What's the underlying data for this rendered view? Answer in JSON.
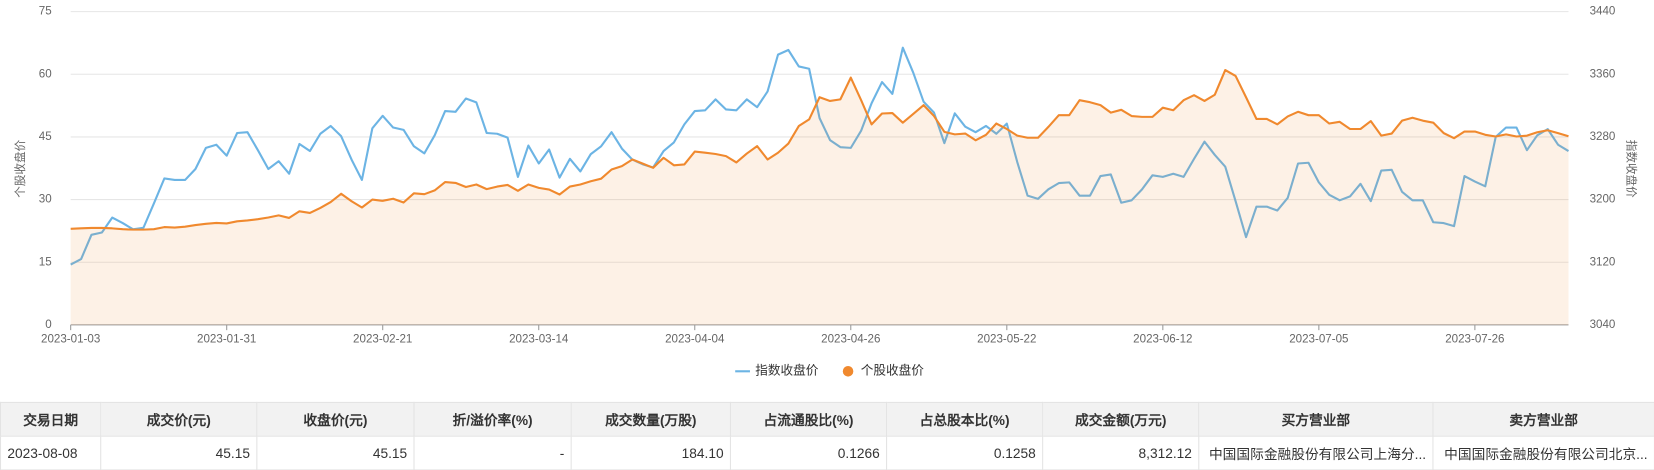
{
  "chart_data": {
    "type": "line",
    "y_label": "个股收盘价",
    "y2_label": "指数收盘价",
    "ylim": [
      0,
      75
    ],
    "yticks": [
      0,
      15,
      30,
      45,
      60,
      75
    ],
    "y2lim": [
      3040,
      3440
    ],
    "y2ticks": [
      3040,
      3120,
      3200,
      3280,
      3360,
      3440
    ],
    "grid": true,
    "legend": "bottom",
    "categories": [
      "2023-01-03",
      null,
      null,
      null,
      null,
      null,
      null,
      null,
      null,
      null,
      null,
      null,
      null,
      null,
      null,
      "2023-01-31",
      null,
      null,
      null,
      null,
      null,
      null,
      null,
      null,
      null,
      null,
      null,
      null,
      null,
      null,
      "2023-02-21",
      null,
      null,
      null,
      null,
      null,
      null,
      null,
      null,
      null,
      null,
      null,
      null,
      null,
      null,
      "2023-03-14",
      null,
      null,
      null,
      null,
      null,
      null,
      null,
      null,
      null,
      null,
      null,
      null,
      null,
      null,
      "2023-04-04",
      null,
      null,
      null,
      null,
      null,
      null,
      null,
      null,
      null,
      null,
      null,
      null,
      null,
      null,
      "2023-04-26",
      null,
      null,
      null,
      null,
      null,
      null,
      null,
      null,
      null,
      null,
      null,
      null,
      null,
      null,
      "2023-05-22",
      null,
      null,
      null,
      null,
      null,
      null,
      null,
      null,
      null,
      null,
      null,
      null,
      null,
      null,
      "2023-06-12",
      null,
      null,
      null,
      null,
      null,
      null,
      null,
      null,
      null,
      null,
      null,
      null,
      null,
      null,
      "2023-07-05",
      null,
      null,
      null,
      null,
      null,
      null,
      null,
      null,
      null,
      null,
      null,
      null,
      null,
      null,
      "2023-07-26",
      null,
      null,
      null,
      null,
      null,
      null,
      null,
      null,
      null
    ],
    "series": [
      {
        "name": "指数收盘价",
        "color": "#6cb4e4",
        "axis": "y2",
        "values": [
          3117,
          3124,
          3155,
          3158,
          3177,
          3170,
          3162,
          3164,
          3195,
          3227,
          3225,
          3225,
          3239,
          3266,
          3270,
          3256,
          3285,
          3286,
          3263,
          3239,
          3249,
          3233,
          3271,
          3262,
          3284,
          3294,
          3281,
          3251,
          3225,
          3291,
          3307,
          3292,
          3289,
          3268,
          3259,
          3282,
          3313,
          3312,
          3329,
          3324,
          3285,
          3284,
          3279,
          3229,
          3269,
          3246,
          3264,
          3228,
          3252,
          3236,
          3258,
          3268,
          3286,
          3265,
          3251,
          3245,
          3241,
          3262,
          3273,
          3296,
          3313,
          3314,
          3328,
          3315,
          3314,
          3328,
          3318,
          3338,
          3385,
          3391,
          3370,
          3367,
          3304,
          3276,
          3267,
          3266,
          3288,
          3323,
          3350,
          3335,
          3394,
          3362,
          3325,
          3311,
          3272,
          3310,
          3293,
          3286,
          3294,
          3284,
          3297,
          3248,
          3205,
          3201,
          3213,
          3221,
          3222,
          3205,
          3205,
          3230,
          3232,
          3196,
          3199,
          3213,
          3231,
          3229,
          3233,
          3229,
          3252,
          3274,
          3257,
          3242,
          3198,
          3152,
          3191,
          3191,
          3186,
          3202,
          3246,
          3247,
          3222,
          3206,
          3199,
          3204,
          3220,
          3198,
          3237,
          3238,
          3210,
          3199,
          3199,
          3171,
          3170,
          3166,
          3230,
          3223,
          3217,
          3280,
          3292,
          3292,
          3263,
          3282,
          3290,
          3270,
          3262
        ]
      },
      {
        "name": "个股收盘价",
        "color": "#f0892e",
        "area": true,
        "values": [
          23,
          23.1,
          23.2,
          23.2,
          23.1,
          22.9,
          22.8,
          22.8,
          22.9,
          23.4,
          23.3,
          23.5,
          23.9,
          24.2,
          24.4,
          24.3,
          24.8,
          25,
          25.3,
          25.7,
          26.2,
          25.6,
          27.2,
          26.8,
          28,
          29.4,
          31.4,
          29.6,
          28.1,
          30,
          29.7,
          30.2,
          29.3,
          31.5,
          31.3,
          32.2,
          34.2,
          34,
          33,
          33.6,
          32.5,
          33.1,
          33.5,
          32.1,
          33.6,
          32.8,
          32.4,
          31.2,
          33.1,
          33.6,
          34.4,
          35,
          37.2,
          38,
          39.6,
          38.6,
          37.6,
          40,
          38.2,
          38.4,
          41.5,
          41.2,
          40.9,
          40.4,
          38.9,
          41,
          42.8,
          39.6,
          41.2,
          43.4,
          47.6,
          49.2,
          54.5,
          53.6,
          54,
          59.2,
          53.8,
          48,
          50.6,
          50.7,
          48.4,
          50.5,
          52.6,
          50,
          46.2,
          45.6,
          45.8,
          44.2,
          45.5,
          48.2,
          46.9,
          45.3,
          44.8,
          44.8,
          47.4,
          50.2,
          50.2,
          53.8,
          53.3,
          52.6,
          50.8,
          51.5,
          50,
          49.8,
          49.8,
          52,
          51.4,
          53.8,
          55,
          53.6,
          55.1,
          61,
          59.6,
          54.5,
          49.3,
          49.3,
          48,
          49.9,
          51,
          50.2,
          50.2,
          48.2,
          48.6,
          46.9,
          46.9,
          48.8,
          45.3,
          45.8,
          48.9,
          49.6,
          48.9,
          48.4,
          45.9,
          44.7,
          46.3,
          46.3,
          45.5,
          45.1,
          45.6,
          45.1,
          45.3,
          46.1,
          46.6,
          45.9,
          45.15
        ]
      }
    ]
  },
  "table": {
    "headers": [
      "交易日期",
      "成交价(元)",
      "收盘价(元)",
      "折/溢价率(%)",
      "成交数量(万股)",
      "占流通股比(%)",
      "占总股本比(%)",
      "成交金额(万元)",
      "买方营业部",
      "卖方营业部"
    ],
    "rows": [
      [
        "2023-08-08",
        "45.15",
        "45.15",
        "-",
        "184.10",
        "0.1266",
        "0.1258",
        "8,312.12",
        "中国国际金融股份有限公司上海分...",
        "中国国际金融股份有限公司北京..."
      ]
    ]
  }
}
